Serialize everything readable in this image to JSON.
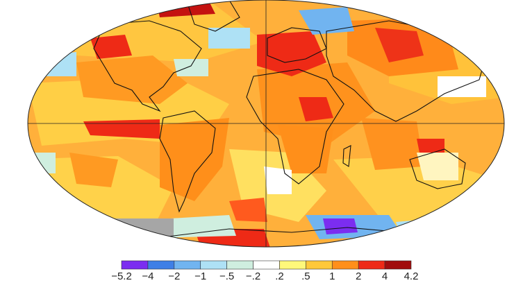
{
  "legend": {
    "colors": [
      "#7b2df0",
      "#3f7fe6",
      "#71b4f0",
      "#aee1f5",
      "#cfeedf",
      "#ffffff",
      "#fff87a",
      "#ffc83a",
      "#ff8f1a",
      "#ee2a16",
      "#a10d0d"
    ],
    "ticks": [
      "−5.2",
      "−4",
      "−2",
      "−1",
      "−.5",
      "−.2",
      ".2",
      ".5",
      "1",
      "2",
      "4",
      "4.2"
    ]
  },
  "palette": {
    "ocean_default": "#ffb347",
    "land_outline": "#111111",
    "missing_data": "#a6a6a6",
    "grid_line": "#222222"
  }
}
